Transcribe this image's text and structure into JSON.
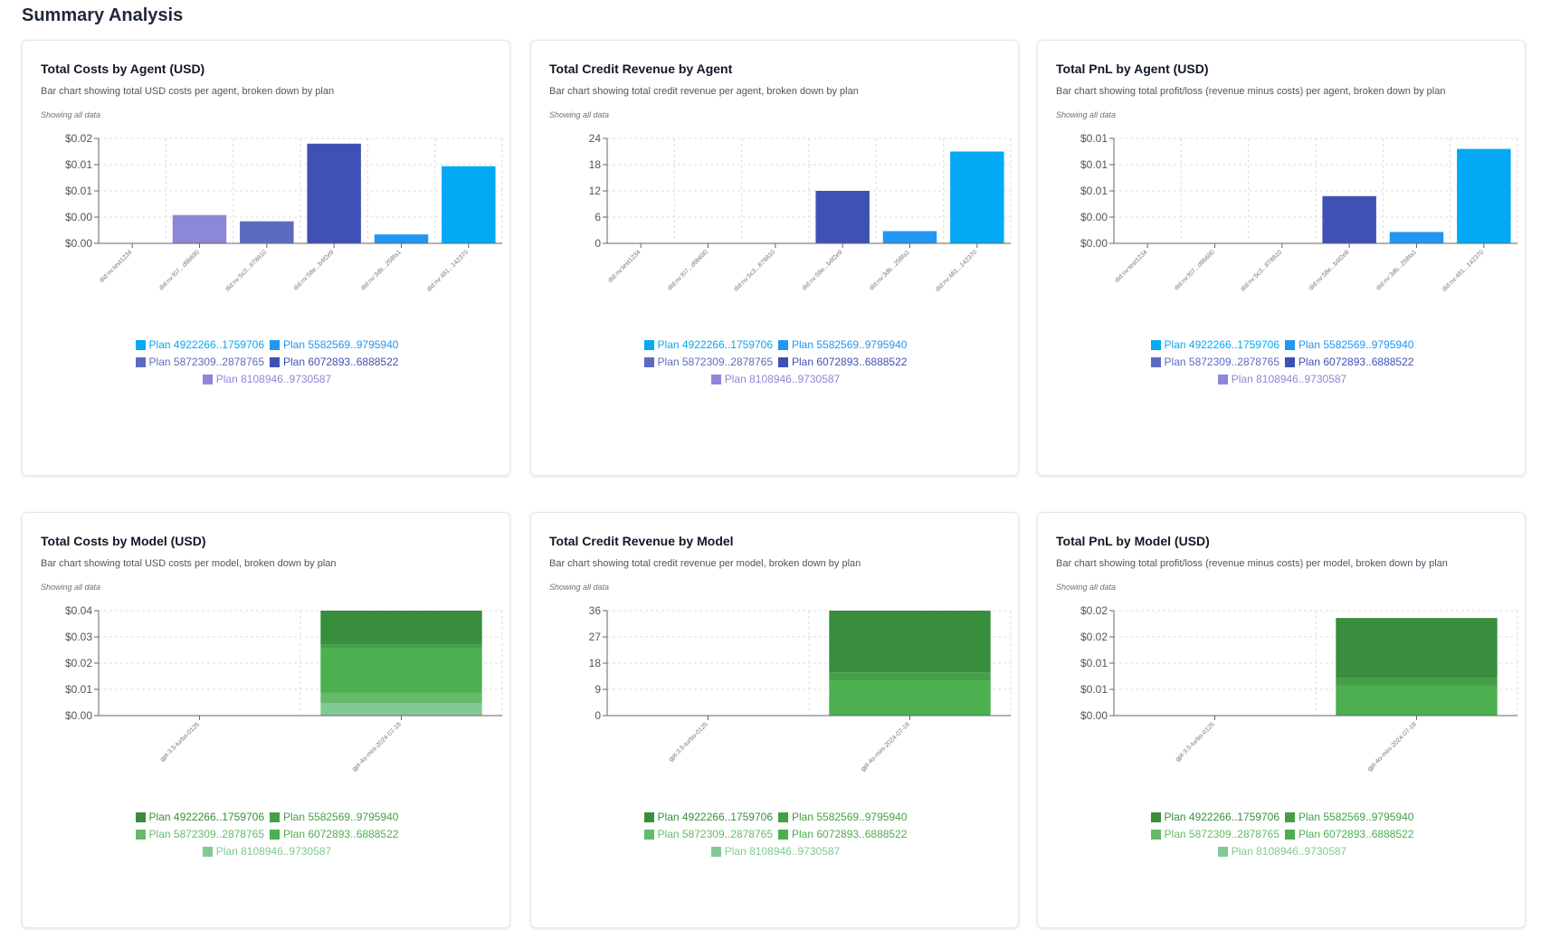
{
  "page": {
    "title": "Summary Analysis"
  },
  "cards": [
    {
      "title": "Total Costs by Agent (USD)",
      "description": "Bar chart showing total USD costs per agent, broken down by plan",
      "note": "Showing all data",
      "legend": [
        {
          "label": "Plan 4922266..1759706",
          "color": "#03a9f4"
        },
        {
          "label": "Plan 5582569..9795940",
          "color": "#2196f3"
        },
        {
          "label": "Plan 5872309..2878765",
          "color": "#5c6bc0"
        },
        {
          "label": "Plan 6072893..6888522",
          "color": "#3f51b5"
        },
        {
          "label": "Plan 8108946..9730587",
          "color": "#8c87d9"
        }
      ]
    },
    {
      "title": "Total Credit Revenue by Agent",
      "description": "Bar chart showing total credit revenue per agent, broken down by plan",
      "note": "Showing all data",
      "legend": [
        {
          "label": "Plan 4922266..1759706",
          "color": "#03a9f4"
        },
        {
          "label": "Plan 5582569..9795940",
          "color": "#2196f3"
        },
        {
          "label": "Plan 5872309..2878765",
          "color": "#5c6bc0"
        },
        {
          "label": "Plan 6072893..6888522",
          "color": "#3f51b5"
        },
        {
          "label": "Plan 8108946..9730587",
          "color": "#8c87d9"
        }
      ]
    },
    {
      "title": "Total PnL by Agent (USD)",
      "description": "Bar chart showing total profit/loss (revenue minus costs) per agent, broken down by plan",
      "note": "Showing all data",
      "legend": [
        {
          "label": "Plan 4922266..1759706",
          "color": "#03a9f4"
        },
        {
          "label": "Plan 5582569..9795940",
          "color": "#2196f3"
        },
        {
          "label": "Plan 5872309..2878765",
          "color": "#5c6bc0"
        },
        {
          "label": "Plan 6072893..6888522",
          "color": "#3f51b5"
        },
        {
          "label": "Plan 8108946..9730587",
          "color": "#8c87d9"
        }
      ]
    },
    {
      "title": "Total Costs by Model (USD)",
      "description": "Bar chart showing total USD costs per model, broken down by plan",
      "note": "Showing all data",
      "legend": [
        {
          "label": "Plan 4922266..1759706",
          "color": "#388e3c"
        },
        {
          "label": "Plan 5582569..9795940",
          "color": "#43a047"
        },
        {
          "label": "Plan 5872309..2878765",
          "color": "#66bb6a"
        },
        {
          "label": "Plan 6072893..6888522",
          "color": "#4caf50"
        },
        {
          "label": "Plan 8108946..9730587",
          "color": "#81c995"
        }
      ]
    },
    {
      "title": "Total Credit Revenue by Model",
      "description": "Bar chart showing total credit revenue per model, broken down by plan",
      "note": "Showing all data",
      "legend": [
        {
          "label": "Plan 4922266..1759706",
          "color": "#388e3c"
        },
        {
          "label": "Plan 5582569..9795940",
          "color": "#43a047"
        },
        {
          "label": "Plan 5872309..2878765",
          "color": "#66bb6a"
        },
        {
          "label": "Plan 6072893..6888522",
          "color": "#4caf50"
        },
        {
          "label": "Plan 8108946..9730587",
          "color": "#81c995"
        }
      ]
    },
    {
      "title": "Total PnL by Model (USD)",
      "description": "Bar chart showing total profit/loss (revenue minus costs) per model, broken down by plan",
      "note": "Showing all data",
      "legend": [
        {
          "label": "Plan 4922266..1759706",
          "color": "#388e3c"
        },
        {
          "label": "Plan 5582569..9795940",
          "color": "#43a047"
        },
        {
          "label": "Plan 5872309..2878765",
          "color": "#66bb6a"
        },
        {
          "label": "Plan 6072893..6888522",
          "color": "#4caf50"
        },
        {
          "label": "Plan 8108946..9730587",
          "color": "#81c995"
        }
      ]
    }
  ],
  "chart_data": [
    {
      "type": "bar",
      "title": "Total Costs by Agent (USD)",
      "categories": [
        "did:nv:test1234",
        "did:nv:f07...d9b690",
        "did:nv:5c3...878810",
        "did:nv:58e...b4f2e9",
        "did:nv:3db...258fa1",
        "did:nv:481...142370"
      ],
      "y_ticks": [
        "$0.00",
        "$0.00",
        "$0.01",
        "$0.01",
        "$0.02"
      ],
      "ylim": [
        0,
        0.02
      ],
      "grid": true,
      "legend_position": "bottom",
      "series": [
        {
          "name": "Plan 8108946..9730587",
          "color": "#8c87d9",
          "values": [
            0,
            0.0054,
            0,
            0,
            0,
            0
          ]
        },
        {
          "name": "Plan 5872309..2878765",
          "color": "#5c6bc0",
          "values": [
            0,
            0,
            0.0042,
            0,
            0,
            0
          ]
        },
        {
          "name": "Plan 6072893..6888522",
          "color": "#3f51b5",
          "values": [
            0,
            0,
            0,
            0.019,
            0,
            0
          ]
        },
        {
          "name": "Plan 5582569..9795940",
          "color": "#2196f3",
          "values": [
            0,
            0,
            0,
            0,
            0.0017,
            0
          ]
        },
        {
          "name": "Plan 4922266..1759706",
          "color": "#03a9f4",
          "values": [
            0,
            0,
            0,
            0,
            0,
            0.0147
          ]
        }
      ]
    },
    {
      "type": "bar",
      "title": "Total Credit Revenue by Agent",
      "categories": [
        "did:nv:test1234",
        "did:nv:f07...d9b690",
        "did:nv:5c3...878810",
        "did:nv:58e...b4f2e9",
        "did:nv:3db...258fa1",
        "did:nv:481...142370"
      ],
      "y_ticks": [
        "0",
        "6",
        "12",
        "18",
        "24"
      ],
      "ylim": [
        0,
        24
      ],
      "grid": true,
      "legend_position": "bottom",
      "series": [
        {
          "name": "Plan 6072893..6888522",
          "color": "#3f51b5",
          "values": [
            0,
            0,
            0,
            12,
            0,
            0
          ]
        },
        {
          "name": "Plan 5582569..9795940",
          "color": "#2196f3",
          "values": [
            0,
            0,
            0,
            0,
            2.8,
            0
          ]
        },
        {
          "name": "Plan 4922266..1759706",
          "color": "#03a9f4",
          "values": [
            0,
            0,
            0,
            0,
            0,
            21
          ]
        }
      ]
    },
    {
      "type": "bar",
      "title": "Total PnL by Agent (USD)",
      "categories": [
        "did:nv:test1234",
        "did:nv:f07...d9b690",
        "did:nv:5c3...878810",
        "did:nv:58e...b4f2e9",
        "did:nv:3db...258fa1",
        "did:nv:481...142370"
      ],
      "y_ticks": [
        "$0.00",
        "$0.00",
        "$0.01",
        "$0.01",
        "$0.01"
      ],
      "ylim": [
        0,
        0.012
      ],
      "grid": true,
      "legend_position": "bottom",
      "series": [
        {
          "name": "Plan 6072893..6888522",
          "color": "#3f51b5",
          "values": [
            0,
            0,
            0,
            0.0054,
            0,
            0
          ]
        },
        {
          "name": "Plan 5582569..9795940",
          "color": "#2196f3",
          "values": [
            0,
            0,
            0,
            0,
            0.0013,
            0
          ]
        },
        {
          "name": "Plan 4922266..1759706",
          "color": "#03a9f4",
          "values": [
            0,
            0,
            0,
            0,
            0,
            0.0108
          ]
        }
      ]
    },
    {
      "type": "bar",
      "stacked": true,
      "title": "Total Costs by Model (USD)",
      "categories": [
        "gpt-3.5-turbo-0125",
        "gpt-4o-mini-2024-07-18"
      ],
      "y_ticks": [
        "$0.00",
        "$0.01",
        "$0.02",
        "$0.03",
        "$0.04"
      ],
      "ylim": [
        0,
        0.04
      ],
      "grid": true,
      "legend_position": "bottom",
      "series": [
        {
          "name": "Plan 8108946..9730587",
          "color": "#81c995",
          "values": [
            0,
            0.0047
          ]
        },
        {
          "name": "Plan 5872309..2878765",
          "color": "#66bb6a",
          "values": [
            0,
            0.0041
          ]
        },
        {
          "name": "Plan 6072893..6888522",
          "color": "#4caf50",
          "values": [
            0,
            0.0168
          ]
        },
        {
          "name": "Plan 5582569..9795940",
          "color": "#43a047",
          "values": [
            0,
            0.0016
          ]
        },
        {
          "name": "Plan 4922266..1759706",
          "color": "#388e3c",
          "values": [
            0,
            0.0128
          ]
        }
      ]
    },
    {
      "type": "bar",
      "stacked": true,
      "title": "Total Credit Revenue by Model",
      "categories": [
        "gpt-3.5-turbo-0125",
        "gpt-4o-mini-2024-07-18"
      ],
      "y_ticks": [
        "0",
        "9",
        "18",
        "27",
        "36"
      ],
      "ylim": [
        0,
        36
      ],
      "grid": true,
      "legend_position": "bottom",
      "series": [
        {
          "name": "Plan 6072893..6888522",
          "color": "#4caf50",
          "values": [
            0,
            12
          ]
        },
        {
          "name": "Plan 5582569..9795940",
          "color": "#43a047",
          "values": [
            0,
            2.8
          ]
        },
        {
          "name": "Plan 4922266..1759706",
          "color": "#388e3c",
          "values": [
            0,
            21.2
          ]
        }
      ]
    },
    {
      "type": "bar",
      "stacked": true,
      "title": "Total PnL by Model (USD)",
      "categories": [
        "gpt-3.5-turbo-0125",
        "gpt-4o-mini-2024-07-18"
      ],
      "y_ticks": [
        "$0.00",
        "$0.01",
        "$0.01",
        "$0.02",
        "$0.02"
      ],
      "ylim": [
        0,
        0.02
      ],
      "grid": true,
      "legend_position": "bottom",
      "series": [
        {
          "name": "Plan 6072893..6888522",
          "color": "#4caf50",
          "values": [
            0,
            0.0057
          ]
        },
        {
          "name": "Plan 5582569..9795940",
          "color": "#43a047",
          "values": [
            0,
            0.0014
          ]
        },
        {
          "name": "Plan 4922266..1759706",
          "color": "#388e3c",
          "values": [
            0,
            0.0115
          ]
        }
      ]
    }
  ]
}
